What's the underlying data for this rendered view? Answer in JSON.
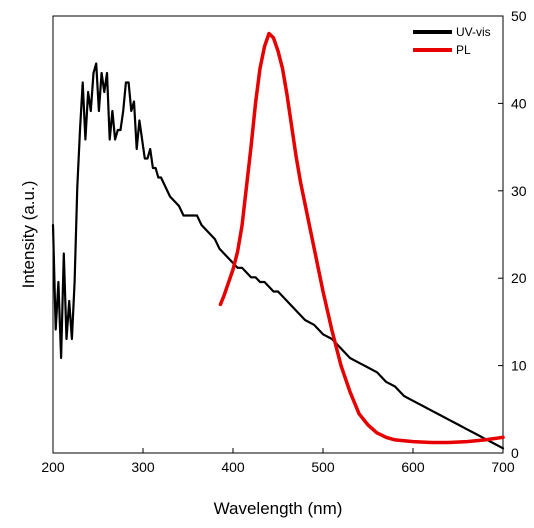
{
  "chart_data": {
    "type": "line",
    "title": "",
    "xlabel": "Wavelength (nm)",
    "ylabel": "Intensity (a.u.)",
    "xlim": [
      200,
      700
    ],
    "x_ticks": [
      "200",
      "300",
      "400",
      "500",
      "600",
      "700"
    ],
    "y2lim": [
      0,
      50
    ],
    "y2_ticks": [
      "0",
      "10",
      "20",
      "30",
      "40",
      "50"
    ],
    "left_y_ticks_labeled": false,
    "grid": false,
    "legend_position": "top-right",
    "series": [
      {
        "name": "UV-vis",
        "color": "#000000",
        "axis": "left",
        "scale": "arbitrary",
        "x": [
          200,
          203,
          206,
          209,
          212,
          215,
          218,
          221,
          224,
          227,
          230,
          233,
          236,
          239,
          242,
          245,
          248,
          251,
          254,
          257,
          260,
          263,
          266,
          269,
          272,
          275,
          278,
          281,
          284,
          287,
          290,
          293,
          296,
          299,
          302,
          305,
          308,
          311,
          314,
          317,
          320,
          325,
          330,
          335,
          340,
          345,
          350,
          355,
          360,
          365,
          370,
          375,
          380,
          385,
          390,
          395,
          400,
          405,
          410,
          415,
          420,
          425,
          430,
          435,
          440,
          445,
          450,
          460,
          470,
          480,
          490,
          500,
          510,
          520,
          530,
          540,
          550,
          560,
          570,
          580,
          590,
          600,
          610,
          620,
          630,
          640,
          650,
          660,
          670,
          680,
          690,
          700
        ],
        "values": [
          24,
          13,
          18,
          10,
          21,
          12,
          16,
          12,
          18,
          28,
          34,
          39,
          33,
          38,
          36,
          40,
          41,
          36,
          40,
          38,
          40,
          33,
          36,
          33,
          34,
          34,
          36,
          39,
          39,
          36,
          37,
          32,
          35,
          33,
          31,
          31,
          32,
          30,
          30,
          29,
          29,
          28,
          27,
          26.5,
          26,
          25,
          25,
          25,
          25,
          24,
          23.5,
          23,
          22.5,
          21.5,
          21,
          20.5,
          20,
          19.5,
          19.5,
          19,
          18.5,
          18.5,
          18,
          18,
          17.5,
          17,
          17,
          16,
          15,
          14,
          13.5,
          12.5,
          12,
          11,
          10,
          9.5,
          9,
          8.5,
          7.5,
          7,
          6,
          5.5,
          5,
          4.5,
          4,
          3.5,
          3,
          2.5,
          2,
          1.5,
          1,
          0.5
        ]
      },
      {
        "name": "PL",
        "color": "#e60000",
        "axis": "right",
        "x": [
          386,
          390,
          395,
          400,
          405,
          410,
          415,
          420,
          425,
          430,
          435,
          440,
          445,
          450,
          455,
          460,
          465,
          470,
          475,
          480,
          485,
          490,
          495,
          500,
          510,
          520,
          530,
          540,
          550,
          560,
          570,
          580,
          600,
          620,
          640,
          660,
          680,
          700
        ],
        "values": [
          17,
          18,
          19.5,
          21,
          23,
          26,
          30.5,
          35,
          40,
          44,
          46.5,
          48,
          47.5,
          46,
          44,
          41,
          37.5,
          34,
          31,
          28.5,
          26,
          23.5,
          21,
          18.5,
          14,
          10,
          7,
          4.5,
          3.2,
          2.3,
          1.8,
          1.5,
          1.3,
          1.2,
          1.2,
          1.3,
          1.5,
          1.8
        ]
      }
    ]
  }
}
